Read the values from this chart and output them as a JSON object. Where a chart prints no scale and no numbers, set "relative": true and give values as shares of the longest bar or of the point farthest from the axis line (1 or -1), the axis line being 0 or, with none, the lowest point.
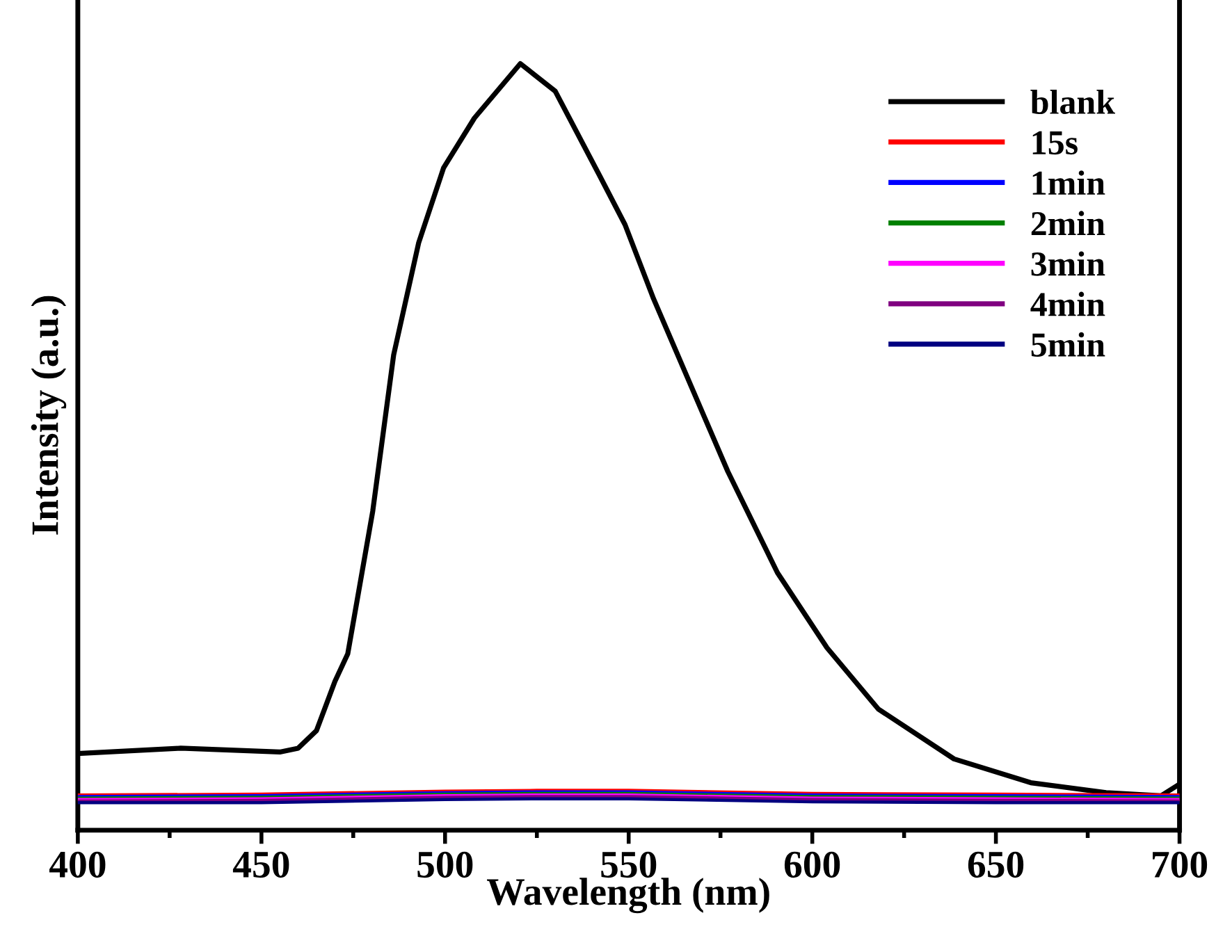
{
  "chart_data": {
    "type": "line",
    "relative": true,
    "xlabel": "Wavelength (nm)",
    "ylabel": "Intensity (a.u.)",
    "xlim": [
      400,
      700
    ],
    "xticks": [
      400,
      {
        "value": 425,
        "label": null
      },
      450,
      {
        "value": 475,
        "label": null
      },
      500,
      {
        "value": 525,
        "label": null
      },
      550,
      {
        "value": 575,
        "label": null
      },
      600,
      {
        "value": 625,
        "label": null
      },
      650,
      {
        "value": 675,
        "label": null
      },
      700
    ],
    "legend": "top right",
    "marker": "none",
    "line_style": "solid",
    "grid": false,
    "tick_labels": "x",
    "series": [
      {
        "name": "blank",
        "color": "#000000",
        "x": [
          400,
          428,
          455,
          460,
          465,
          470,
          473.5,
          480.3,
          486,
          492.8,
          499.6,
          508,
          520.5,
          530,
          542.4,
          549,
          556.8,
          577,
          590.5,
          604,
          618,
          638.6,
          659.5,
          680,
          695,
          699.3
        ],
        "values": [
          0.1,
          0.107,
          0.102,
          0.107,
          0.13,
          0.194,
          0.23,
          0.416,
          0.62,
          0.766,
          0.864,
          0.929,
          1.0,
          0.964,
          0.851,
          0.79,
          0.693,
          0.468,
          0.336,
          0.238,
          0.158,
          0.093,
          0.062,
          0.049,
          0.045,
          0.058
        ]
      },
      {
        "name": "15s",
        "color": "#ff0000",
        "x": [
          400,
          450,
          500,
          525,
          550,
          600,
          650,
          700
        ],
        "values": [
          0.046,
          0.047,
          0.051,
          0.052,
          0.052,
          0.048,
          0.047,
          0.046
        ]
      },
      {
        "name": "1min",
        "color": "#0000ff",
        "x": [
          400,
          450,
          500,
          525,
          550,
          600,
          650,
          700
        ],
        "values": [
          0.044,
          0.045,
          0.049,
          0.05,
          0.05,
          0.046,
          0.045,
          0.044
        ]
      },
      {
        "name": "2min",
        "color": "#008000",
        "x": [
          400,
          450,
          500,
          525,
          550,
          600,
          650,
          700
        ],
        "values": [
          0.042,
          0.043,
          0.047,
          0.048,
          0.048,
          0.044,
          0.043,
          0.042
        ]
      },
      {
        "name": "3min",
        "color": "#ff00ff",
        "x": [
          400,
          450,
          500,
          525,
          550,
          600,
          650,
          700
        ],
        "values": [
          0.04,
          0.041,
          0.045,
          0.046,
          0.046,
          0.042,
          0.041,
          0.04
        ]
      },
      {
        "name": "4min",
        "color": "#800080",
        "x": [
          400,
          450,
          500,
          525,
          550,
          600,
          650,
          700
        ],
        "values": [
          0.038,
          0.039,
          0.043,
          0.044,
          0.044,
          0.04,
          0.039,
          0.038
        ]
      },
      {
        "name": "5min",
        "color": "#000080",
        "x": [
          400,
          450,
          500,
          525,
          550,
          600,
          650,
          700
        ],
        "values": [
          0.036,
          0.036,
          0.04,
          0.041,
          0.041,
          0.037,
          0.036,
          0.036
        ]
      }
    ]
  }
}
